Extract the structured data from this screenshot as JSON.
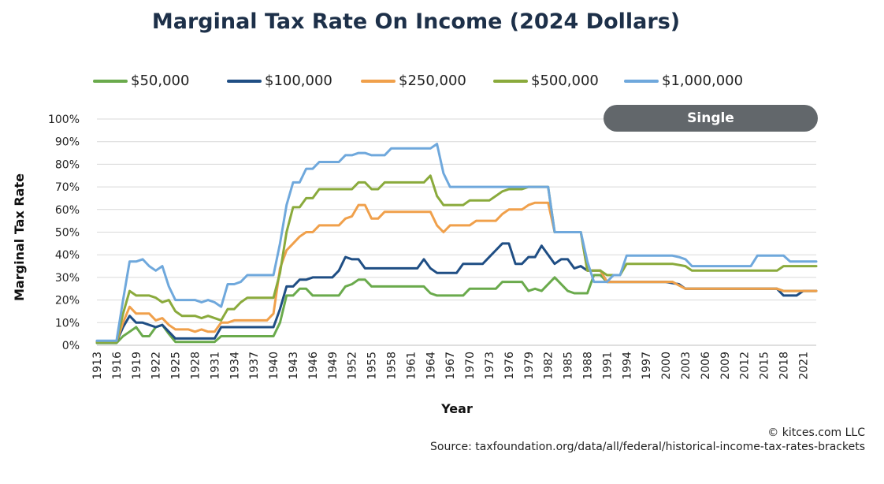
{
  "chart_data": {
    "type": "line",
    "title": "Marginal Tax Rate On Income (2024 Dollars)",
    "xlabel": "Year",
    "ylabel": "Marginal Tax Rate",
    "ylim": [
      0,
      100
    ],
    "yticks": [
      "0%",
      "10%",
      "20%",
      "30%",
      "40%",
      "50%",
      "60%",
      "70%",
      "80%",
      "90%",
      "100%"
    ],
    "xlim": [
      1913,
      2023
    ],
    "xticks": [
      1913,
      1916,
      1919,
      1922,
      1925,
      1928,
      1931,
      1934,
      1937,
      1940,
      1943,
      1946,
      1949,
      1952,
      1955,
      1958,
      1961,
      1964,
      1967,
      1970,
      1973,
      1976,
      1979,
      1982,
      1985,
      1988,
      1991,
      1994,
      1997,
      2000,
      2003,
      2006,
      2009,
      2012,
      2015,
      2018,
      2021
    ],
    "grid": true,
    "filing_status": "Single",
    "series": [
      {
        "name": "$50,000",
        "color": "#6aaa4c",
        "points": [
          [
            1913,
            1
          ],
          [
            1916,
            1
          ],
          [
            1917,
            4
          ],
          [
            1918,
            6
          ],
          [
            1919,
            8
          ],
          [
            1920,
            4
          ],
          [
            1921,
            4
          ],
          [
            1922,
            8
          ],
          [
            1923,
            9
          ],
          [
            1924,
            5
          ],
          [
            1925,
            1.5
          ],
          [
            1931,
            1.5
          ],
          [
            1932,
            4
          ],
          [
            1940,
            4
          ],
          [
            1941,
            10
          ],
          [
            1942,
            22
          ],
          [
            1943,
            22
          ],
          [
            1944,
            25
          ],
          [
            1945,
            25
          ],
          [
            1946,
            22
          ],
          [
            1950,
            22
          ],
          [
            1951,
            26
          ],
          [
            1952,
            27
          ],
          [
            1953,
            29
          ],
          [
            1954,
            29
          ],
          [
            1955,
            26
          ],
          [
            1963,
            26
          ],
          [
            1964,
            23
          ],
          [
            1965,
            22
          ],
          [
            1969,
            22
          ],
          [
            1970,
            25
          ],
          [
            1974,
            25
          ],
          [
            1975,
            28
          ],
          [
            1978,
            28
          ],
          [
            1979,
            24
          ],
          [
            1980,
            25
          ],
          [
            1981,
            24
          ],
          [
            1983,
            30
          ],
          [
            1985,
            24
          ],
          [
            1986,
            23
          ],
          [
            1988,
            23
          ],
          [
            1989,
            31
          ],
          [
            1990,
            31
          ],
          [
            1991,
            28
          ],
          [
            2001,
            28
          ],
          [
            2003,
            25
          ],
          [
            2017,
            25
          ],
          [
            2018,
            24
          ],
          [
            2023,
            24
          ]
        ]
      },
      {
        "name": "$100,000",
        "color": "#1f4e84",
        "points": [
          [
            1913,
            1.5
          ],
          [
            1916,
            1.5
          ],
          [
            1917,
            8
          ],
          [
            1918,
            13
          ],
          [
            1919,
            10
          ],
          [
            1920,
            10
          ],
          [
            1921,
            9
          ],
          [
            1922,
            8
          ],
          [
            1923,
            9
          ],
          [
            1924,
            6
          ],
          [
            1925,
            3
          ],
          [
            1931,
            3
          ],
          [
            1932,
            8
          ],
          [
            1940,
            8
          ],
          [
            1941,
            16
          ],
          [
            1942,
            26
          ],
          [
            1943,
            26
          ],
          [
            1944,
            29
          ],
          [
            1945,
            29
          ],
          [
            1946,
            30
          ],
          [
            1949,
            30
          ],
          [
            1950,
            33
          ],
          [
            1951,
            39
          ],
          [
            1952,
            38
          ],
          [
            1953,
            38
          ],
          [
            1954,
            34
          ],
          [
            1962,
            34
          ],
          [
            1963,
            38
          ],
          [
            1964,
            34
          ],
          [
            1965,
            32
          ],
          [
            1968,
            32
          ],
          [
            1969,
            36
          ],
          [
            1972,
            36
          ],
          [
            1973,
            39
          ],
          [
            1974,
            42
          ],
          [
            1975,
            45
          ],
          [
            1976,
            45
          ],
          [
            1977,
            36
          ],
          [
            1978,
            36
          ],
          [
            1979,
            39
          ],
          [
            1980,
            39
          ],
          [
            1981,
            44
          ],
          [
            1983,
            36
          ],
          [
            1984,
            38
          ],
          [
            1985,
            38
          ],
          [
            1986,
            34
          ],
          [
            1987,
            35
          ],
          [
            1988,
            33
          ],
          [
            1990,
            33
          ],
          [
            1991,
            28
          ],
          [
            2000,
            28
          ],
          [
            2001,
            27.5
          ],
          [
            2002,
            27
          ],
          [
            2003,
            25
          ],
          [
            2017,
            25
          ],
          [
            2018,
            22
          ],
          [
            2020,
            22
          ],
          [
            2021,
            24
          ],
          [
            2023,
            24
          ]
        ]
      },
      {
        "name": "$250,000",
        "color": "#f0a04b",
        "points": [
          [
            1913,
            1.5
          ],
          [
            1916,
            1.5
          ],
          [
            1917,
            10
          ],
          [
            1918,
            17
          ],
          [
            1919,
            14
          ],
          [
            1921,
            14
          ],
          [
            1922,
            11
          ],
          [
            1923,
            12
          ],
          [
            1924,
            9
          ],
          [
            1925,
            7
          ],
          [
            1927,
            7
          ],
          [
            1928,
            6
          ],
          [
            1929,
            7
          ],
          [
            1930,
            6
          ],
          [
            1931,
            6
          ],
          [
            1932,
            10
          ],
          [
            1933,
            10
          ],
          [
            1934,
            11
          ],
          [
            1939,
            11
          ],
          [
            1940,
            14
          ],
          [
            1941,
            34
          ],
          [
            1942,
            42
          ],
          [
            1943,
            45
          ],
          [
            1944,
            48
          ],
          [
            1945,
            50
          ],
          [
            1946,
            50
          ],
          [
            1947,
            53
          ],
          [
            1950,
            53
          ],
          [
            1951,
            56
          ],
          [
            1952,
            57
          ],
          [
            1953,
            62
          ],
          [
            1954,
            62
          ],
          [
            1955,
            56
          ],
          [
            1956,
            56
          ],
          [
            1957,
            59
          ],
          [
            1964,
            59
          ],
          [
            1965,
            53
          ],
          [
            1966,
            50
          ],
          [
            1967,
            53
          ],
          [
            1970,
            53
          ],
          [
            1971,
            55
          ],
          [
            1974,
            55
          ],
          [
            1975,
            58
          ],
          [
            1976,
            60
          ],
          [
            1978,
            60
          ],
          [
            1979,
            62
          ],
          [
            1980,
            63
          ],
          [
            1982,
            63
          ],
          [
            1983,
            50
          ],
          [
            1987,
            50
          ],
          [
            1988,
            33
          ],
          [
            1990,
            33
          ],
          [
            1991,
            28
          ],
          [
            2001,
            28
          ],
          [
            2003,
            25
          ],
          [
            2017,
            25
          ],
          [
            2018,
            24
          ],
          [
            2023,
            24
          ]
        ]
      },
      {
        "name": "$500,000",
        "color": "#8aaa3c",
        "points": [
          [
            1913,
            1.5
          ],
          [
            1916,
            1.5
          ],
          [
            1917,
            14
          ],
          [
            1918,
            24
          ],
          [
            1919,
            22
          ],
          [
            1921,
            22
          ],
          [
            1922,
            21
          ],
          [
            1923,
            19
          ],
          [
            1924,
            20
          ],
          [
            1925,
            15
          ],
          [
            1926,
            13
          ],
          [
            1928,
            13
          ],
          [
            1929,
            12
          ],
          [
            1930,
            13
          ],
          [
            1931,
            12
          ],
          [
            1932,
            11
          ],
          [
            1933,
            16
          ],
          [
            1934,
            16
          ],
          [
            1935,
            19
          ],
          [
            1936,
            21
          ],
          [
            1940,
            21
          ],
          [
            1941,
            32
          ],
          [
            1942,
            50
          ],
          [
            1943,
            61
          ],
          [
            1944,
            61
          ],
          [
            1945,
            65
          ],
          [
            1946,
            65
          ],
          [
            1947,
            69
          ],
          [
            1952,
            69
          ],
          [
            1953,
            72
          ],
          [
            1954,
            72
          ],
          [
            1955,
            69
          ],
          [
            1956,
            69
          ],
          [
            1957,
            72
          ],
          [
            1963,
            72
          ],
          [
            1964,
            75
          ],
          [
            1965,
            66
          ],
          [
            1966,
            62
          ],
          [
            1969,
            62
          ],
          [
            1970,
            64
          ],
          [
            1973,
            64
          ],
          [
            1974,
            66
          ],
          [
            1975,
            68
          ],
          [
            1976,
            69
          ],
          [
            1978,
            69
          ],
          [
            1979,
            70
          ],
          [
            1982,
            70
          ],
          [
            1983,
            50
          ],
          [
            1987,
            50
          ],
          [
            1988,
            33
          ],
          [
            1990,
            33
          ],
          [
            1991,
            31
          ],
          [
            1993,
            31
          ],
          [
            1994,
            36
          ],
          [
            2001,
            36
          ],
          [
            2002,
            35.5
          ],
          [
            2003,
            35
          ],
          [
            2004,
            33
          ],
          [
            2017,
            33
          ],
          [
            2018,
            35
          ],
          [
            2023,
            35
          ]
        ]
      },
      {
        "name": "$1,000,000",
        "color": "#6fa8dc",
        "points": [
          [
            1913,
            2
          ],
          [
            1916,
            2
          ],
          [
            1917,
            20
          ],
          [
            1918,
            37
          ],
          [
            1919,
            37
          ],
          [
            1920,
            38
          ],
          [
            1921,
            35
          ],
          [
            1922,
            33
          ],
          [
            1923,
            35
          ],
          [
            1924,
            26
          ],
          [
            1925,
            20
          ],
          [
            1928,
            20
          ],
          [
            1929,
            19
          ],
          [
            1930,
            20
          ],
          [
            1931,
            19
          ],
          [
            1932,
            17
          ],
          [
            1933,
            27
          ],
          [
            1934,
            27
          ],
          [
            1935,
            28
          ],
          [
            1936,
            31
          ],
          [
            1940,
            31
          ],
          [
            1941,
            45
          ],
          [
            1942,
            62
          ],
          [
            1943,
            72
          ],
          [
            1944,
            72
          ],
          [
            1945,
            78
          ],
          [
            1946,
            78
          ],
          [
            1947,
            81
          ],
          [
            1950,
            81
          ],
          [
            1951,
            84
          ],
          [
            1952,
            84
          ],
          [
            1953,
            85
          ],
          [
            1954,
            85
          ],
          [
            1955,
            84
          ],
          [
            1957,
            84
          ],
          [
            1958,
            87
          ],
          [
            1964,
            87
          ],
          [
            1965,
            89
          ],
          [
            1966,
            76
          ],
          [
            1967,
            70
          ],
          [
            1982,
            70
          ],
          [
            1983,
            50
          ],
          [
            1987,
            50
          ],
          [
            1988,
            37
          ],
          [
            1989,
            28
          ],
          [
            1991,
            28
          ],
          [
            1992,
            31
          ],
          [
            1993,
            31
          ],
          [
            1994,
            39.6
          ],
          [
            2001,
            39.6
          ],
          [
            2002,
            39
          ],
          [
            2003,
            38
          ],
          [
            2004,
            35
          ],
          [
            2013,
            35
          ],
          [
            2014,
            39.6
          ],
          [
            2018,
            39.6
          ],
          [
            2019,
            37
          ],
          [
            2023,
            37
          ]
        ]
      }
    ]
  },
  "footer": {
    "copyright": "© kitces.com LLC",
    "source": "Source: taxfoundation.org/data/all/federal/historical-income-tax-rates-brackets"
  }
}
